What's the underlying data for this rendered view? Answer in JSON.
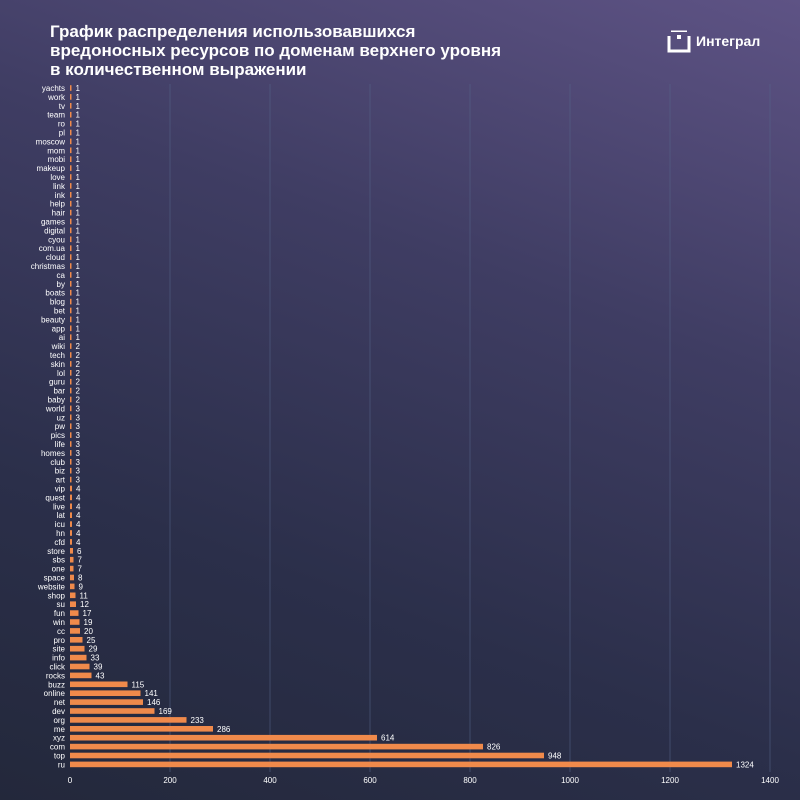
{
  "title_lines": [
    "График распределения использовавшихся",
    "вредоносных ресурсов по доменам верхнего уровня",
    "в количественном выражении"
  ],
  "brand": {
    "name": "Интеграл",
    "icon": "integral-logo-icon"
  },
  "colors": {
    "bar": "#f08a4b",
    "grid": "#56658a",
    "text": "#ffffff",
    "background_top": "#5e5385",
    "background_bottom": "#23283b"
  },
  "chart_data": {
    "type": "bar",
    "orientation": "horizontal",
    "title": "График распределения использовавшихся вредоносных ресурсов по доменам верхнего уровня в количественном выражении",
    "xlim": [
      0,
      1400
    ],
    "xticks": [
      0,
      200,
      400,
      600,
      800,
      1000,
      1200,
      1400
    ],
    "grid": true,
    "categories": [
      "yachts",
      "work",
      "tv",
      "team",
      "ro",
      "pl",
      "moscow",
      "mom",
      "mobi",
      "makeup",
      "love",
      "link",
      "ink",
      "help",
      "hair",
      "games",
      "digital",
      "cyou",
      "com.ua",
      "cloud",
      "christmas",
      "ca",
      "by",
      "boats",
      "blog",
      "bet",
      "beauty",
      "app",
      "ai",
      "wiki",
      "tech",
      "skin",
      "lol",
      "guru",
      "bar",
      "baby",
      "world",
      "uz",
      "pw",
      "pics",
      "life",
      "homes",
      "club",
      "biz",
      "art",
      "vip",
      "quest",
      "live",
      "lat",
      "icu",
      "hn",
      "cfd",
      "store",
      "sbs",
      "one",
      "space",
      "website",
      "shop",
      "su",
      "fun",
      "win",
      "cc",
      "pro",
      "site",
      "info",
      "click",
      "rocks",
      "buzz",
      "online",
      "net",
      "dev",
      "org",
      "me",
      "xyz",
      "com",
      "top",
      "ru"
    ],
    "values": [
      1,
      1,
      1,
      1,
      1,
      1,
      1,
      1,
      1,
      1,
      1,
      1,
      1,
      1,
      1,
      1,
      1,
      1,
      1,
      1,
      1,
      1,
      1,
      1,
      1,
      1,
      1,
      1,
      1,
      2,
      2,
      2,
      2,
      2,
      2,
      2,
      3,
      3,
      3,
      3,
      3,
      3,
      3,
      3,
      3,
      4,
      4,
      4,
      4,
      4,
      4,
      4,
      6,
      7,
      7,
      8,
      9,
      11,
      12,
      17,
      19,
      20,
      25,
      29,
      33,
      39,
      43,
      115,
      141,
      146,
      169,
      233,
      286,
      614,
      826,
      948,
      1324
    ]
  }
}
